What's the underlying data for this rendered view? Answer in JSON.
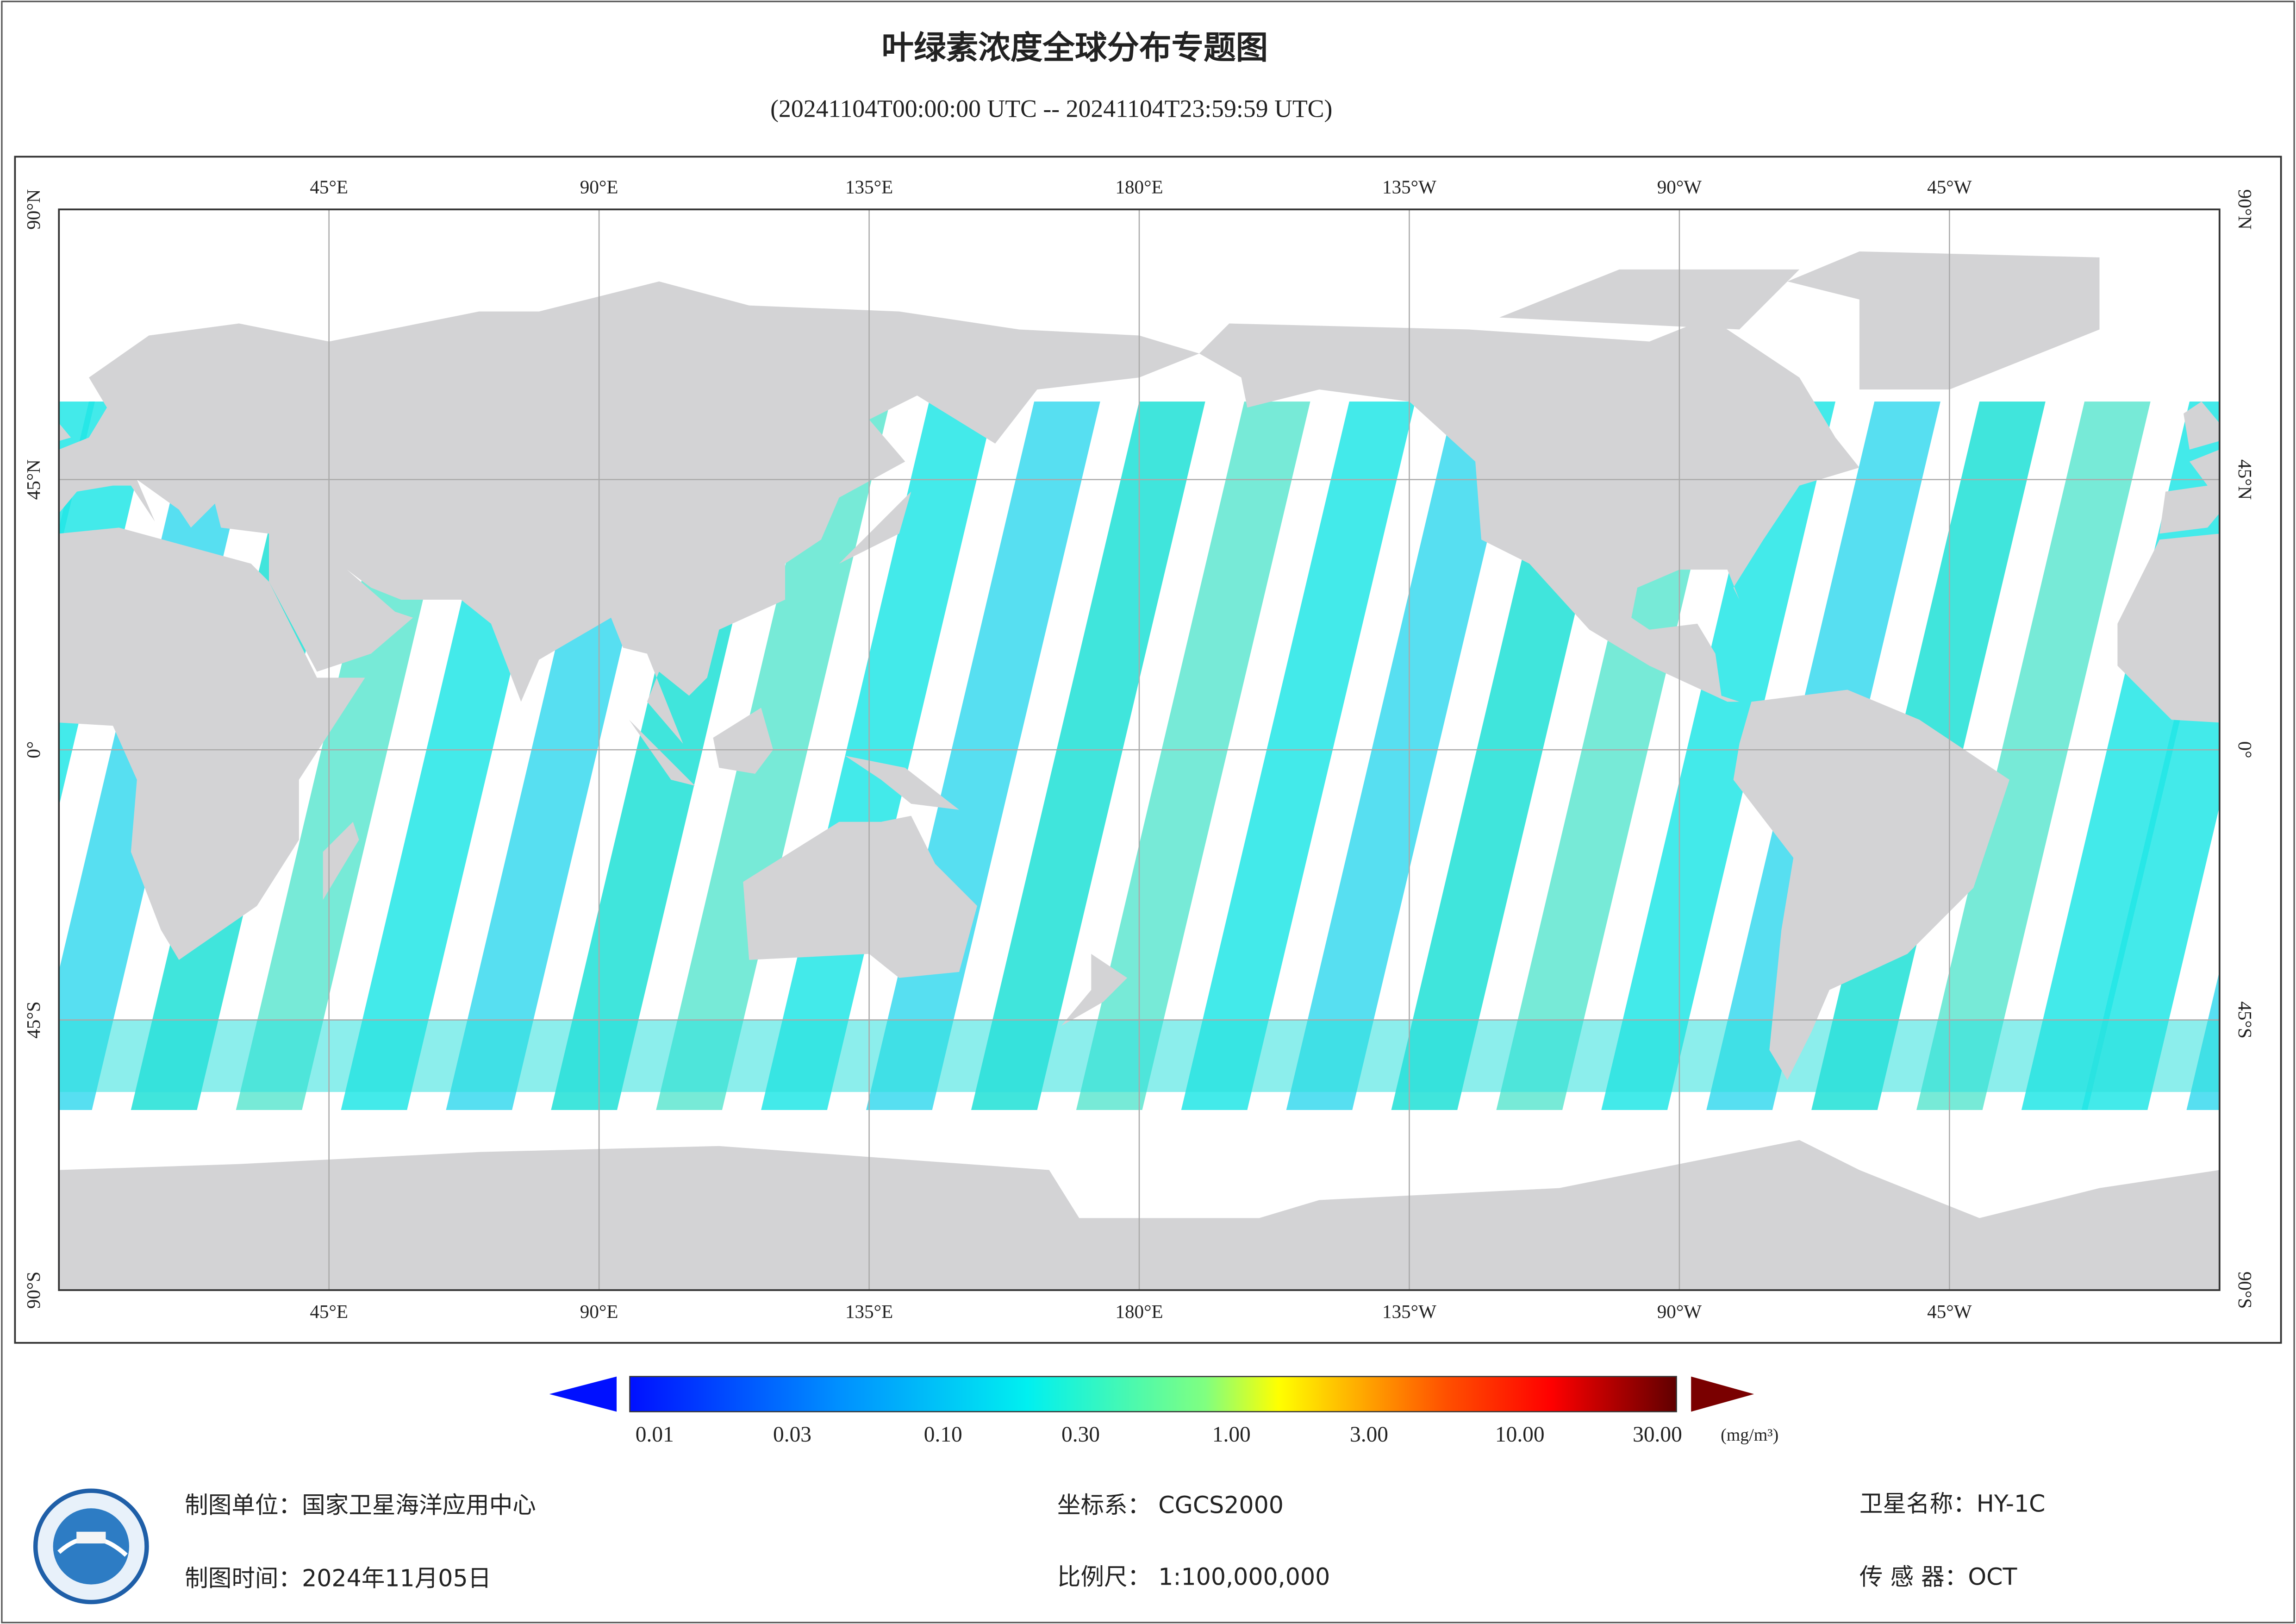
{
  "header": {
    "title": "叶绿素浓度全球分布专题图",
    "subtitle": "(20241104T00:00:00 UTC -- 20241104T23:59:59 UTC)"
  },
  "map": {
    "lon_labels": [
      "45°E",
      "90°E",
      "135°E",
      "180°E",
      "135°W",
      "90°W",
      "45°W"
    ],
    "lat_labels": [
      "90°N",
      "45°N",
      "0°",
      "45°S",
      "90°S"
    ]
  },
  "colorbar": {
    "ticks": [
      {
        "value": 0.01,
        "label": "0.01"
      },
      {
        "value": 0.03,
        "label": "0.03"
      },
      {
        "value": 0.1,
        "label": "0.10"
      },
      {
        "value": 0.3,
        "label": "0.30"
      },
      {
        "value": 1,
        "label": "1.00"
      },
      {
        "value": 3,
        "label": "3.00"
      },
      {
        "value": 10,
        "label": "10.00"
      },
      {
        "value": 30,
        "label": "30.00"
      }
    ],
    "unit": "(mg/m³)"
  },
  "footer": {
    "unit": "制图单位：国家卫星海洋应用中心",
    "crs": "坐标系：  CGCS2000",
    "satellite": "卫星名称：HY-1C",
    "date": "制图时间：2024年11月05日",
    "scale": "比例尺：  1:100,000,000",
    "sensor": "传 感 器：OCT"
  }
}
